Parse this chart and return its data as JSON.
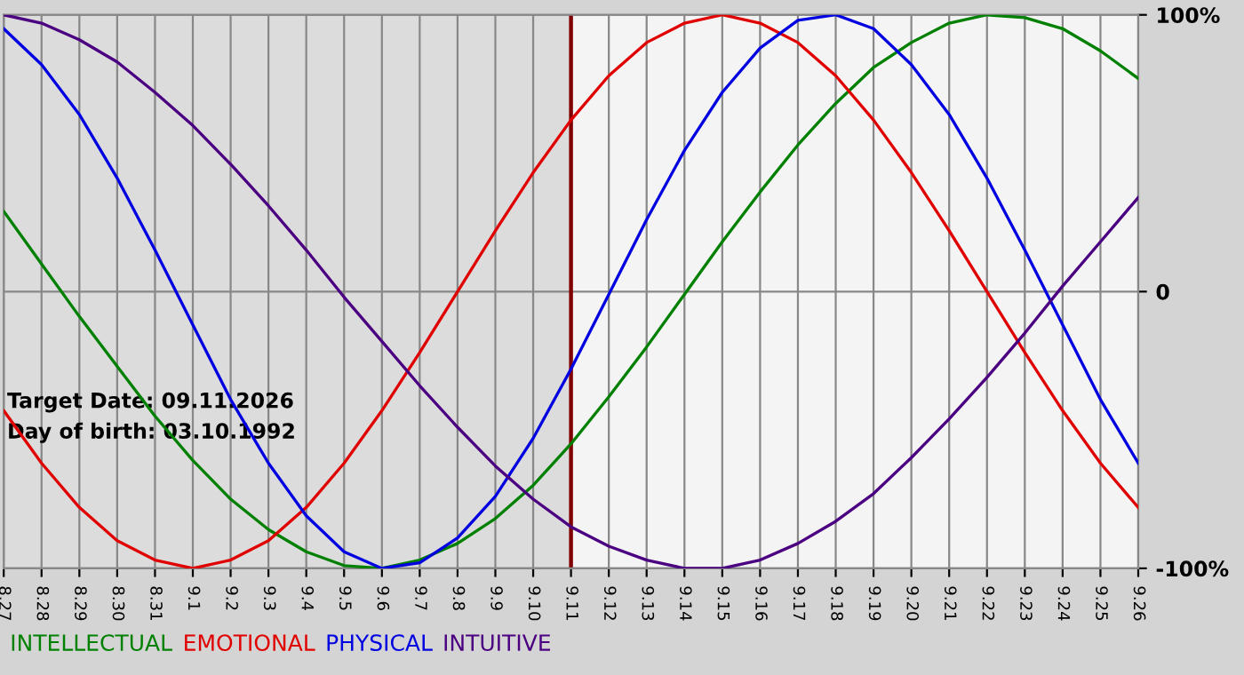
{
  "chart_data": {
    "type": "line",
    "categories": [
      "8.27",
      "8.28",
      "8.29",
      "8.30",
      "8.31",
      "9.1",
      "9.2",
      "9.3",
      "9.4",
      "9.5",
      "9.6",
      "9.7",
      "9.8",
      "9.9",
      "9.10",
      "9.11",
      "9.12",
      "9.13",
      "9.14",
      "9.15",
      "9.16",
      "9.17",
      "9.18",
      "9.19",
      "9.20",
      "9.21",
      "9.22",
      "9.23",
      "9.24",
      "9.25",
      "9.26"
    ],
    "series": [
      {
        "name": "INTELLECTUAL",
        "color": "#008000",
        "values": [
          29,
          10,
          -9,
          -27,
          -45,
          -61,
          -75,
          -86,
          -94,
          -99,
          -100,
          -97,
          -91,
          -82,
          -70,
          -55,
          -38,
          -20,
          -1,
          18,
          36,
          53,
          68,
          81,
          90,
          97,
          100,
          99,
          95,
          87,
          77
        ]
      },
      {
        "name": "EMOTIONAL",
        "color": "#e00000",
        "values": [
          -43,
          -62,
          -78,
          -90,
          -97,
          -100,
          -97,
          -90,
          -78,
          -62,
          -43,
          -22,
          0,
          22,
          43,
          62,
          78,
          90,
          97,
          100,
          97,
          90,
          78,
          62,
          43,
          22,
          0,
          -22,
          -43,
          -62,
          -78
        ]
      },
      {
        "name": "PHYSICAL",
        "color": "#0000e0",
        "values": [
          95,
          82,
          64,
          41,
          15,
          -12,
          -39,
          -62,
          -81,
          -94,
          -100,
          -98,
          -89,
          -74,
          -53,
          -28,
          -1,
          26,
          51,
          72,
          88,
          98,
          100,
          95,
          82,
          64,
          41,
          15,
          -12,
          -39,
          -62
        ]
      },
      {
        "name": "INTUITIVE",
        "color": "#4b0082",
        "values": [
          100,
          97,
          91,
          83,
          72,
          60,
          46,
          31,
          15,
          -2,
          -18,
          -34,
          -49,
          -63,
          -75,
          -85,
          -92,
          -97,
          -100,
          -100,
          -97,
          -91,
          -83,
          -73,
          -60,
          -46,
          -31,
          -15,
          2,
          18,
          34
        ]
      }
    ],
    "ylim": [
      -100,
      100
    ],
    "yticks": [
      {
        "value": 100,
        "label": "100%"
      },
      0,
      {
        "value": -100,
        "label": "-100%"
      }
    ],
    "grid": true,
    "ref_lines": [
      {
        "axis": "x",
        "value": "9.11",
        "color": "#800000"
      }
    ],
    "bands": [
      {
        "axis": "x",
        "from": "8.27",
        "to": "9.11",
        "color": "#dcdcdc"
      }
    ],
    "annotations": [
      "Target Date: 09.11.2026",
      "Day of birth: 03.10.1992"
    ],
    "legend": "bottom left"
  }
}
